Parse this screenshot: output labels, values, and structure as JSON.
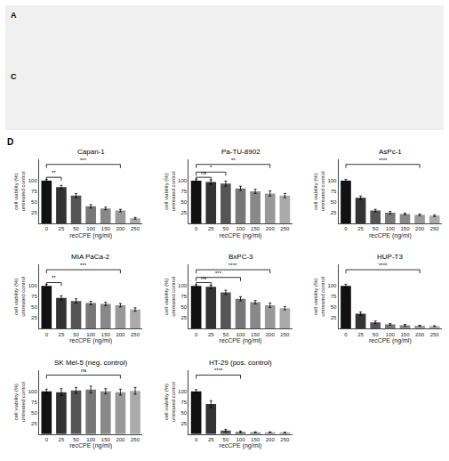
{
  "chart_data": [
    {
      "type": "bar",
      "title": "Capan-1",
      "xlabel": "recCPE (ng/ml)",
      "ylabel": "cell viability (%)\nuntreated control",
      "categories": [
        "0",
        "25",
        "50",
        "100",
        "150",
        "200",
        "250"
      ],
      "values": [
        100,
        85,
        65,
        40,
        35,
        30,
        12
      ],
      "errors": [
        3,
        4,
        5,
        4,
        3,
        3,
        2
      ],
      "colors": [
        "#111111",
        "#333333",
        "#555555",
        "#777777",
        "#888888",
        "#999999",
        "#aaaaaa"
      ],
      "ylim": [
        0,
        150
      ],
      "yticks": [
        25,
        50,
        75,
        100
      ],
      "grid": false,
      "annotations": [
        {
          "text": "A"
        },
        {
          "text": "C"
        },
        {
          "text": "D"
        },
        {
          "from": "0",
          "to": "200",
          "y": 138,
          "text": "***"
        },
        {
          "from": "0",
          "to": "25",
          "y": 108,
          "text": "**"
        }
      ]
    },
    {
      "type": "bar",
      "title": "Pa-TU-8902",
      "xlabel": "recCPE (ng/ml)",
      "ylabel": "cell viability (%)\nuntreated control",
      "categories": [
        "0",
        "25",
        "50",
        "100",
        "150",
        "200",
        "250"
      ],
      "values": [
        100,
        97,
        93,
        82,
        75,
        70,
        65
      ],
      "errors": [
        4,
        5,
        6,
        5,
        5,
        6,
        5
      ],
      "colors": [
        "#111111",
        "#333333",
        "#555555",
        "#777777",
        "#888888",
        "#999999",
        "#aaaaaa"
      ],
      "ylim": [
        0,
        150
      ],
      "yticks": [
        25,
        50,
        75,
        100
      ],
      "grid": false,
      "annotations": [
        {
          "from": "0",
          "to": "200",
          "y": 138,
          "text": "**"
        },
        {
          "from": "0",
          "to": "50",
          "y": 120,
          "text": "*"
        },
        {
          "from": "0",
          "to": "25",
          "y": 108,
          "text": "ns"
        }
      ]
    },
    {
      "type": "bar",
      "title": "AsPc-1",
      "xlabel": "recCPE (ng/ml)",
      "ylabel": "cell viability (%)\nuntreated control",
      "categories": [
        "0",
        "25",
        "50",
        "100",
        "150",
        "200",
        "250"
      ],
      "values": [
        100,
        60,
        30,
        25,
        22,
        20,
        18
      ],
      "errors": [
        3,
        4,
        3,
        3,
        2,
        2,
        2
      ],
      "colors": [
        "#111111",
        "#333333",
        "#555555",
        "#777777",
        "#888888",
        "#999999",
        "#aaaaaa"
      ],
      "ylim": [
        0,
        150
      ],
      "yticks": [
        25,
        50,
        75,
        100
      ],
      "grid": false,
      "annotations": [
        {
          "from": "0",
          "to": "200",
          "y": 138,
          "text": "****"
        }
      ]
    },
    {
      "type": "bar",
      "title": "MIA PaCa-2",
      "xlabel": "recCPE (ng/ml)",
      "ylabel": "cell viability (%)\nuntreated control",
      "categories": [
        "0",
        "25",
        "50",
        "100",
        "150",
        "200",
        "250"
      ],
      "values": [
        100,
        72,
        65,
        60,
        58,
        55,
        45
      ],
      "errors": [
        4,
        5,
        5,
        4,
        4,
        4,
        4
      ],
      "colors": [
        "#111111",
        "#333333",
        "#555555",
        "#777777",
        "#888888",
        "#999999",
        "#aaaaaa"
      ],
      "ylim": [
        0,
        150
      ],
      "yticks": [
        25,
        50,
        75,
        100
      ],
      "grid": false,
      "annotations": [
        {
          "from": "0",
          "to": "200",
          "y": 138,
          "text": "***"
        },
        {
          "from": "0",
          "to": "25",
          "y": 108,
          "text": "**"
        }
      ]
    },
    {
      "type": "bar",
      "title": "BxPC-3",
      "xlabel": "recCPE (ng/ml)",
      "ylabel": "cell viability (%)\nuntreated control",
      "categories": [
        "0",
        "25",
        "50",
        "100",
        "150",
        "200",
        "250"
      ],
      "values": [
        100,
        98,
        85,
        70,
        62,
        55,
        48
      ],
      "errors": [
        3,
        4,
        5,
        5,
        4,
        5,
        4
      ],
      "colors": [
        "#111111",
        "#333333",
        "#555555",
        "#777777",
        "#888888",
        "#999999",
        "#aaaaaa"
      ],
      "ylim": [
        0,
        150
      ],
      "yticks": [
        25,
        50,
        75,
        100
      ],
      "grid": false,
      "annotations": [
        {
          "from": "0",
          "to": "200",
          "y": 138,
          "text": "****"
        },
        {
          "from": "0",
          "to": "100",
          "y": 120,
          "text": "***"
        },
        {
          "from": "0",
          "to": "25",
          "y": 108,
          "text": "ns"
        }
      ]
    },
    {
      "type": "bar",
      "title": "HUP-T3",
      "xlabel": "recCPE (ng/ml)",
      "ylabel": "cell viability (%)\nuntreated control",
      "categories": [
        "0",
        "25",
        "50",
        "100",
        "150",
        "200",
        "250"
      ],
      "values": [
        100,
        35,
        15,
        10,
        8,
        7,
        6
      ],
      "errors": [
        4,
        4,
        3,
        2,
        2,
        1,
        1
      ],
      "colors": [
        "#111111",
        "#333333",
        "#555555",
        "#777777",
        "#888888",
        "#999999",
        "#aaaaaa"
      ],
      "ylim": [
        0,
        150
      ],
      "yticks": [
        25,
        50,
        75,
        100
      ],
      "grid": false,
      "annotations": [
        {
          "from": "0",
          "to": "200",
          "y": 138,
          "text": "****"
        }
      ]
    },
    {
      "type": "bar",
      "title": "SK Mel-5 (neg. control)",
      "xlabel": "recCPE (ng/ml)",
      "ylabel": "cell viability (%)\nuntreated control",
      "categories": [
        "0",
        "25",
        "50",
        "100",
        "150",
        "200",
        "250"
      ],
      "values": [
        100,
        98,
        102,
        104,
        100,
        98,
        101
      ],
      "errors": [
        5,
        8,
        7,
        8,
        6,
        7,
        8
      ],
      "colors": [
        "#111111",
        "#333333",
        "#555555",
        "#777777",
        "#888888",
        "#999999",
        "#aaaaaa"
      ],
      "ylim": [
        0,
        150
      ],
      "yticks": [
        25,
        50,
        75,
        100
      ],
      "grid": false,
      "annotations": [
        {
          "from": "0",
          "to": "200",
          "y": 138,
          "text": "ns"
        }
      ]
    },
    {
      "type": "bar",
      "title": "HT-29 (pos. control)",
      "xlabel": "recCPE (ng/ml)",
      "ylabel": "cell viability (%)\nuntreated control",
      "categories": [
        "0",
        "25",
        "50",
        "100",
        "150",
        "200",
        "250"
      ],
      "values": [
        100,
        70,
        8,
        5,
        4,
        4,
        3
      ],
      "errors": [
        4,
        8,
        3,
        2,
        1,
        1,
        1
      ],
      "colors": [
        "#111111",
        "#333333",
        "#555555",
        "#777777",
        "#888888",
        "#999999",
        "#aaaaaa"
      ],
      "ylim": [
        0,
        150
      ],
      "yticks": [
        25,
        50,
        75,
        100
      ],
      "grid": false,
      "annotations": [
        {
          "from": "0",
          "to": "100",
          "y": 138,
          "text": "****"
        }
      ]
    }
  ]
}
